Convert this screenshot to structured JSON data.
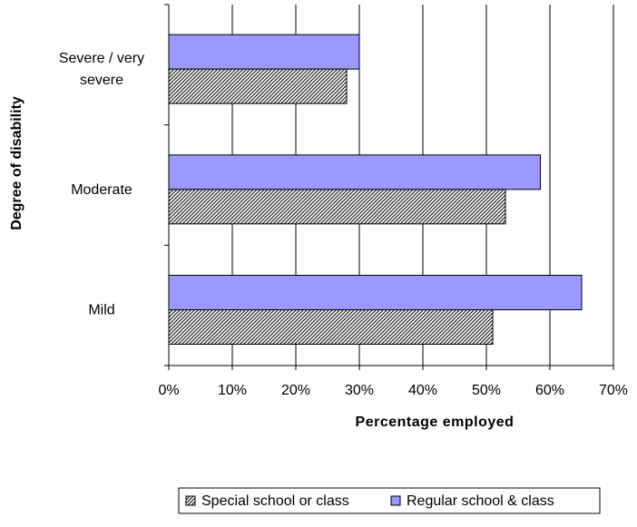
{
  "chart_data": {
    "type": "bar",
    "orientation": "horizontal",
    "categories": [
      "Severe / very severe",
      "Moderate",
      "Mild"
    ],
    "category_label_lines": [
      [
        "Severe / very",
        "severe"
      ],
      [
        "Moderate"
      ],
      [
        "Mild"
      ]
    ],
    "series": [
      {
        "name": "Regular school & class",
        "values": [
          30,
          58.5,
          65
        ],
        "color": "#9999ff",
        "pattern": "solid"
      },
      {
        "name": "Special school or class",
        "values": [
          28,
          53,
          51
        ],
        "color": "#ffffff",
        "pattern": "diagonal-hatch"
      }
    ],
    "x_ticks": [
      "0%",
      "10%",
      "20%",
      "30%",
      "40%",
      "50%",
      "60%",
      "70%"
    ],
    "xlim": [
      0,
      70
    ],
    "xlabel": "Percentage employed",
    "ylabel": "Degree of disability",
    "grid": "vertical",
    "legend": {
      "position": "bottom",
      "entries": [
        "Special school or class",
        "Regular school & class"
      ]
    }
  }
}
